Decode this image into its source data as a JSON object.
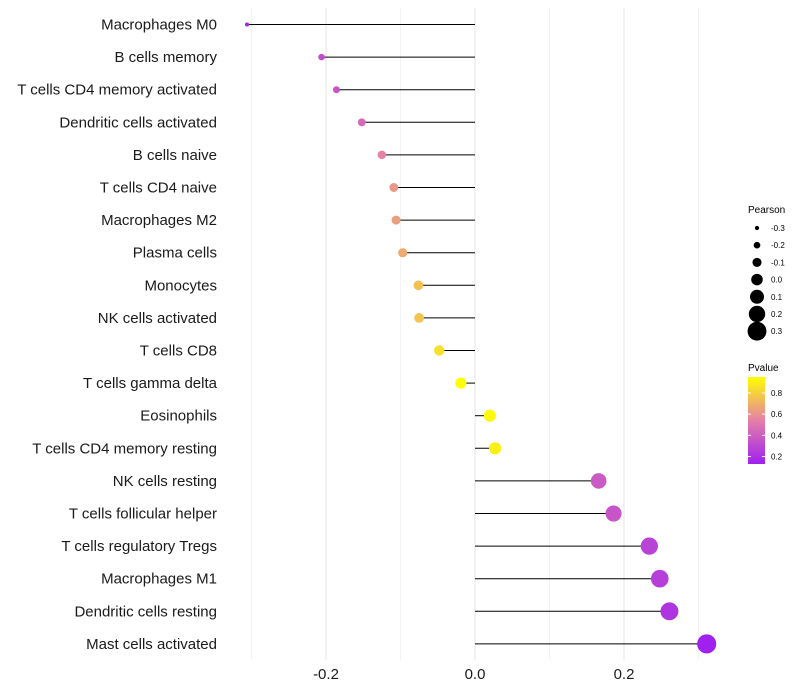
{
  "chart_data": {
    "type": "lollipop",
    "title": "",
    "xlabel": "",
    "ylabel": "",
    "xlim": [
      -0.31,
      0.325
    ],
    "xticks": [
      -0.2,
      0.0,
      0.2
    ],
    "xtick_labels": [
      "-0.2",
      "0.0",
      "0.2"
    ],
    "grid": true,
    "categories": [
      "Macrophages M0",
      "B cells memory",
      "T cells CD4 memory activated",
      "Dendritic cells activated",
      "B cells naive",
      "T cells CD4 naive",
      "Macrophages M2",
      "Plasma cells",
      "Monocytes",
      "NK cells activated",
      "T cells CD8",
      "T cells gamma delta",
      "Eosinophils",
      "T cells CD4 memory resting",
      "NK cells resting",
      "T cells follicular helper",
      "T cells regulatory  Tregs",
      "Macrophages M1",
      "Dendritic cells resting",
      "Mast cells activated"
    ],
    "pearson": [
      -0.306,
      -0.206,
      -0.186,
      -0.152,
      -0.125,
      -0.109,
      -0.106,
      -0.097,
      -0.076,
      -0.075,
      -0.048,
      -0.019,
      0.02,
      0.027,
      0.166,
      0.186,
      0.234,
      0.248,
      0.261,
      0.311
    ],
    "pvalue": [
      0.15,
      0.32,
      0.36,
      0.45,
      0.55,
      0.62,
      0.64,
      0.68,
      0.75,
      0.76,
      0.85,
      0.95,
      0.93,
      0.9,
      0.38,
      0.36,
      0.28,
      0.26,
      0.22,
      0.13
    ],
    "size_legend": {
      "title": "Pearson",
      "labels": [
        "-0.3",
        "-0.2",
        "-0.1",
        "0.0",
        "0.1",
        "0.2",
        "0.3"
      ],
      "values": [
        -0.3,
        -0.2,
        -0.1,
        0.0,
        0.1,
        0.2,
        0.3
      ]
    },
    "color_legend": {
      "title": "Pvalue",
      "labels": [
        "0.8",
        "0.6",
        "0.4",
        "0.2"
      ],
      "values": [
        0.8,
        0.6,
        0.4,
        0.2
      ],
      "range": [
        0.13,
        0.95
      ],
      "low_color": "#a020f0",
      "mid_color": "#e57fa8",
      "high_color": "#ffff00"
    }
  }
}
